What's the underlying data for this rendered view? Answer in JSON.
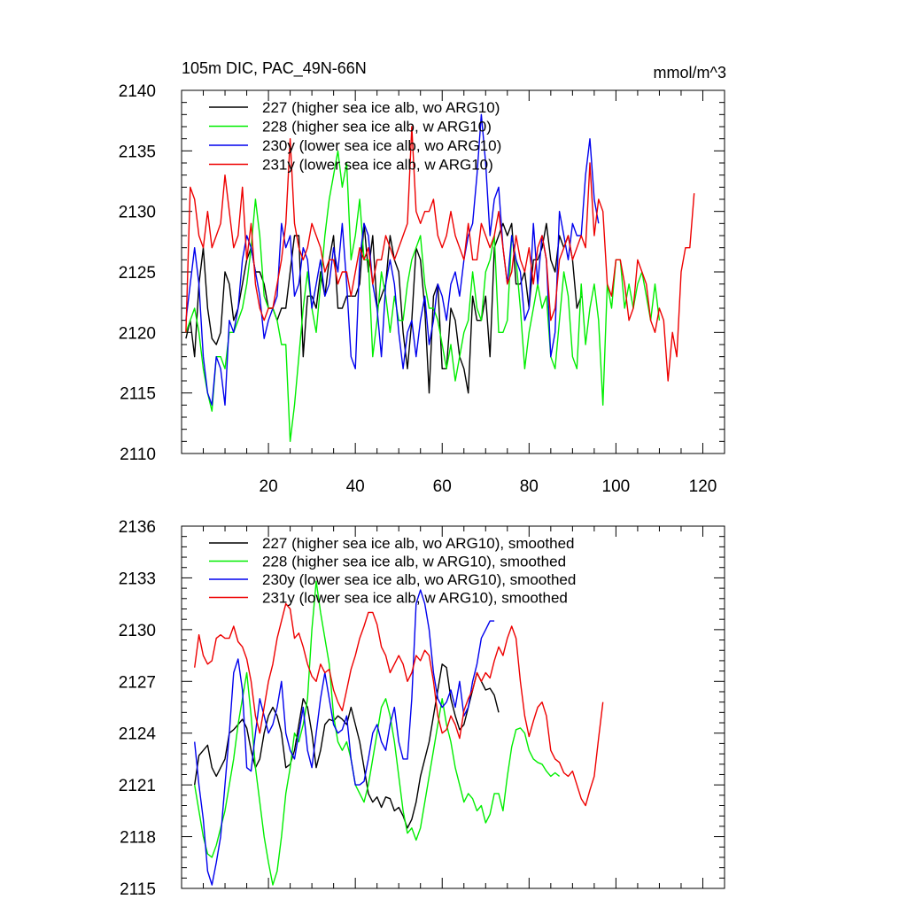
{
  "chart_data": [
    {
      "type": "line",
      "title": "105m DIC, PAC_49N-66N",
      "units": "mmol/m^3",
      "xlim": [
        0,
        125
      ],
      "ylim": [
        2110,
        2140
      ],
      "xticks": [
        20,
        40,
        60,
        80,
        100,
        120
      ],
      "yticks": [
        2110,
        2115,
        2120,
        2125,
        2130,
        2135,
        2140
      ],
      "series": [
        {
          "name": "227 (higher sea ice alb, wo ARG10)",
          "color": "#000000",
          "x_start": 1,
          "values": [
            2119.5,
            2121,
            2118,
            2124,
            2127,
            2122,
            2119.5,
            2119,
            2120,
            2125,
            2124,
            2121,
            2122,
            2124,
            2126,
            2127,
            2125,
            2125,
            2124,
            2122,
            2122,
            2121,
            2122,
            2122,
            2125,
            2128,
            2128,
            2118,
            2123,
            2123,
            2122,
            2125,
            2123,
            2126,
            2128,
            2122,
            2122,
            2123,
            2123,
            2123,
            2124,
            2129,
            2125,
            2128,
            2122,
            2123,
            2124,
            2128,
            2126,
            2125,
            2120,
            2117,
            2121,
            2127,
            2126,
            2122,
            2115,
            2123,
            2124,
            2117,
            2117,
            2122,
            2121,
            2118,
            2117,
            2115,
            2123,
            2121,
            2121,
            2123,
            2118,
            2127,
            2128,
            2129,
            2128,
            2129,
            2124,
            2124,
            2125,
            2122,
            2126,
            2126,
            2127,
            2129,
            2126,
            2125,
            2128,
            2127,
            2128,
            2126,
            2122,
            2123
          ]
        },
        {
          "name": "228 (higher sea ice alb, w ARG10)",
          "color": "#00ee00",
          "x_start": 1,
          "values": [
            2120,
            2121,
            2122,
            2120,
            2117,
            2115,
            2113.5,
            2118,
            2118,
            2117,
            2120,
            2120,
            2121,
            2122,
            2124,
            2127,
            2131,
            2128,
            2123,
            2122,
            2122,
            2121,
            2119,
            2119,
            2111,
            2114,
            2118,
            2122,
            2125,
            2122,
            2120,
            2124,
            2128,
            2131,
            2133,
            2135,
            2132,
            2134,
            2126,
            2128,
            2131,
            2126,
            2126,
            2118,
            2121,
            2125,
            2123,
            2120,
            2123,
            2121,
            2121,
            2124,
            2126,
            2127,
            2128,
            2124,
            2122,
            2122,
            2121,
            2119,
            2117,
            2119,
            2116,
            2118,
            2120,
            2121,
            2125,
            2122,
            2121,
            2125,
            2126,
            2128,
            2120,
            2120,
            2121,
            2128,
            2126,
            2122,
            2117,
            2120,
            2122,
            2124,
            2122,
            2123,
            2118,
            2117,
            2121,
            2125,
            2123,
            2118,
            2117,
            2124,
            2119,
            2122,
            2124,
            2121,
            2114,
            2124,
            2122,
            2126,
            2126,
            2122,
            2124,
            2122,
            2124,
            2125,
            2123,
            2121,
            2124,
            2121
          ]
        },
        {
          "name": "230y (lower sea ice alb, wo ARG10)",
          "color": "#0000ee",
          "x_start": 1,
          "values": [
            2121,
            2124,
            2127,
            2124,
            2118,
            2115,
            2114,
            2118,
            2117,
            2114,
            2121,
            2120,
            2122,
            2126,
            2128,
            2127,
            2125,
            2123,
            2119.5,
            2121,
            2122,
            2123,
            2129,
            2127,
            2128,
            2123,
            2124,
            2127,
            2126,
            2122,
            2124,
            2126,
            2123,
            2124,
            2127,
            2125,
            2129,
            2124,
            2118,
            2117,
            2126,
            2129,
            2128,
            2124,
            2122,
            2118,
            2124,
            2126,
            2124,
            2120,
            2117,
            2120,
            2121,
            2118,
            2121,
            2123,
            2119,
            2121,
            2124,
            2123,
            2121,
            2124,
            2125,
            2123,
            2126,
            2128,
            2129,
            2133,
            2138,
            2134,
            2128,
            2131,
            2132,
            2127,
            2124,
            2128,
            2126,
            2125,
            2121,
            2122,
            2129,
            2124,
            2128,
            2126,
            2118,
            2120,
            2130,
            2128,
            2126,
            2129,
            2128,
            2128,
            2133,
            2136,
            2131,
            2129
          ]
        },
        {
          "name": "231y (lower sea ice alb, w ARG10)",
          "color": "#ee0000",
          "x_start": 1,
          "values": [
            2120,
            2132,
            2131,
            2128,
            2127,
            2130,
            2127,
            2128,
            2129,
            2133,
            2130,
            2127,
            2128,
            2132,
            2126,
            2129,
            2124,
            2122,
            2121,
            2122,
            2122,
            2124,
            2126,
            2129,
            2136,
            2129,
            2127,
            2126,
            2127,
            2129,
            2128,
            2127,
            2125,
            2126,
            2126,
            2124,
            2125,
            2125,
            2123,
            2125,
            2127,
            2126,
            2127,
            2124,
            2126,
            2126,
            2128,
            2127,
            2126,
            2127,
            2128,
            2129,
            2137,
            2130,
            2129,
            2130,
            2130,
            2131,
            2128,
            2127,
            2128,
            2130,
            2128,
            2127,
            2126,
            2129,
            2126,
            2126,
            2129,
            2128,
            2127,
            2128,
            2130,
            2127,
            2124,
            2125,
            2128,
            2126,
            2125,
            2127,
            2124,
            2127,
            2128,
            2126,
            2121,
            2122,
            2126,
            2127,
            2128,
            2126,
            2127,
            2128,
            2127,
            2134,
            2128,
            2131,
            2130,
            2124,
            2123,
            2126,
            2126,
            2124,
            2121,
            2122,
            2126,
            2125,
            2124,
            2121,
            2120,
            2122,
            2121,
            2116,
            2120,
            2118,
            2125,
            2127,
            2127,
            2131.5
          ]
        }
      ]
    },
    {
      "type": "line",
      "title": "",
      "xlim": [
        0,
        125
      ],
      "ylim": [
        2115,
        2136
      ],
      "xticks": [
        20,
        40,
        60,
        80,
        100,
        120
      ],
      "yticks": [
        2115,
        2118,
        2121,
        2124,
        2127,
        2130,
        2133,
        2136
      ],
      "series": [
        {
          "name": "227 (higher sea ice alb, wo ARG10), smoothed",
          "color": "#000000",
          "x_start": 3,
          "values": [
            2121,
            2122.7,
            2123,
            2123.3,
            2122,
            2121.5,
            2122,
            2122.5,
            2124,
            2124.2,
            2124.5,
            2124.8,
            2124.3,
            2123,
            2122,
            2122.5,
            2124,
            2125,
            2125.5,
            2125,
            2124,
            2122,
            2122.2,
            2123,
            2124.5,
            2126,
            2125.5,
            2124,
            2122,
            2123,
            2124.5,
            2124.8,
            2124.7,
            2125,
            2124.8,
            2124.5,
            2125.5,
            2124.5,
            2123.5,
            2122,
            2120.5,
            2120,
            2120.3,
            2119.7,
            2120.3,
            2120.2,
            2119.5,
            2119.7,
            2119.2,
            2118.5,
            2119,
            2120,
            2121.5,
            2122.5,
            2123.5,
            2125,
            2126.5,
            2128,
            2127.8,
            2126,
            2125,
            2124.2,
            2124.5,
            2125.5,
            2126.5,
            2127.5,
            2127,
            2126.5,
            2126.6,
            2126.2,
            2125.2
          ]
        },
        {
          "name": "228 (higher sea ice alb, w ARG10), smoothed",
          "color": "#00ee00",
          "x_start": 3,
          "values": [
            2121,
            2119.5,
            2118,
            2117,
            2116.8,
            2117.5,
            2118.5,
            2119.5,
            2121,
            2122.5,
            2124.5,
            2126,
            2127.5,
            2125,
            2122,
            2120,
            2118,
            2116.5,
            2115.2,
            2116,
            2118,
            2120.5,
            2122,
            2124,
            2123.5,
            2124.5,
            2126,
            2130,
            2132.8,
            2131,
            2129.5,
            2128,
            2125,
            2123.5,
            2123,
            2123.5,
            2122.5,
            2121,
            2120.5,
            2120,
            2121,
            2122.5,
            2124,
            2125.5,
            2126,
            2125,
            2123.5,
            2121.5,
            2119.5,
            2118.2,
            2118.5,
            2117.8,
            2118.5,
            2120,
            2121.5,
            2123,
            2124.5,
            2126,
            2124.5,
            2123.5,
            2122,
            2121,
            2120,
            2120.5,
            2120.2,
            2119.5,
            2119.8,
            2118.8,
            2119.3,
            2120.5,
            2120.5,
            2119.5,
            2121.5,
            2123.2,
            2124.2,
            2124.3,
            2124,
            2123,
            2122.5,
            2122.3,
            2122.2,
            2121.8,
            2121.5,
            2121.7,
            2121.5
          ]
        },
        {
          "name": "230y (lower sea ice alb, wo ARG10), smoothed",
          "color": "#0000ee",
          "x_start": 3,
          "values": [
            2123.5,
            2121,
            2119,
            2116,
            2115.2,
            2116.5,
            2118,
            2121,
            2124,
            2127.5,
            2128.3,
            2126.5,
            2122,
            2121.8,
            2124,
            2126,
            2125,
            2124,
            2124.5,
            2125.5,
            2127,
            2124,
            2123,
            2122.5,
            2124,
            2125.5,
            2123,
            2122,
            2124,
            2126,
            2127.5,
            2126,
            2124.5,
            2124,
            2124.2,
            2125,
            2122.5,
            2121,
            2121,
            2121.2,
            2122.5,
            2124,
            2124.5,
            2123.5,
            2123,
            2124.5,
            2125.5,
            2123.5,
            2122.5,
            2122.5,
            2126,
            2131.5,
            2132.3,
            2131.5,
            2130,
            2127.5,
            2126,
            2125.5,
            2125.8,
            2126.5,
            2125.5,
            2127,
            2125,
            2125.5,
            2127,
            2128,
            2129.5,
            2130,
            2130.5,
            2130.5
          ]
        },
        {
          "name": "231y (lower sea ice alb, w ARG10), smoothed",
          "color": "#ee0000",
          "x_start": 3,
          "values": [
            2127.8,
            2129.7,
            2128.5,
            2128,
            2128.2,
            2129.5,
            2129.7,
            2129.5,
            2129.5,
            2130.2,
            2129.3,
            2129,
            2128.3,
            2127,
            2125,
            2124,
            2125.5,
            2127,
            2128,
            2129.5,
            2130.5,
            2131.5,
            2131.2,
            2129.5,
            2129.8,
            2129,
            2128,
            2127.3,
            2127,
            2128,
            2127.5,
            2127.7,
            2126.5,
            2125.8,
            2125.3,
            2126.5,
            2127.7,
            2128.5,
            2129.5,
            2130.2,
            2131,
            2131,
            2130.3,
            2129,
            2128.5,
            2127.5,
            2128,
            2128.5,
            2128,
            2127,
            2127.5,
            2128.5,
            2128.2,
            2128.8,
            2128.5,
            2127,
            2125,
            2124,
            2124.2,
            2125,
            2124.5,
            2123.7,
            2125.3,
            2126,
            2126.5,
            2127.5,
            2127,
            2127.5,
            2127.2,
            2128.2,
            2129,
            2128.5,
            2129.5,
            2130.2,
            2129.5,
            2127,
            2125,
            2123.8,
            2124.7,
            2125.5,
            2125.8,
            2125,
            2123,
            2122.5,
            2122.3,
            2121.7,
            2121.5,
            2121.8,
            2121,
            2120.2,
            2119.8,
            2120.7,
            2121.5,
            2123.7,
            2125.8
          ]
        }
      ]
    }
  ]
}
